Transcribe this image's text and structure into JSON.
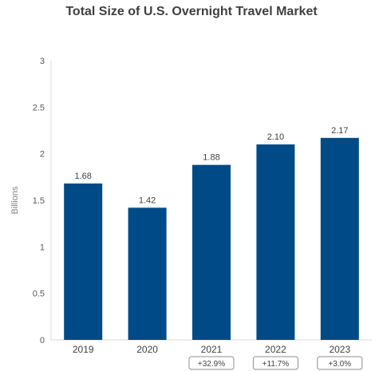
{
  "chart_data": {
    "type": "bar",
    "title": "Total Size of U.S. Overnight Travel Market",
    "ylabel": "Billions",
    "xlabel": "",
    "categories": [
      "2019",
      "2020",
      "2021",
      "2022",
      "2023"
    ],
    "values": [
      1.68,
      1.42,
      1.88,
      2.1,
      2.17
    ],
    "data_labels": [
      "1.68",
      "1.42",
      "1.88",
      "2.10",
      "2.17"
    ],
    "growth_labels": [
      "",
      "",
      "+32.9%",
      "+11.7%",
      "+3.0%"
    ],
    "ylim": [
      0,
      3
    ],
    "yticks": [
      0,
      0.5,
      1,
      1.5,
      2,
      2.5,
      3
    ],
    "ytick_labels": [
      "0",
      "0.5",
      "1",
      "1.5",
      "2",
      "2.5",
      "3"
    ],
    "bar_color": "#004b87",
    "grid": false,
    "legend": "none"
  }
}
